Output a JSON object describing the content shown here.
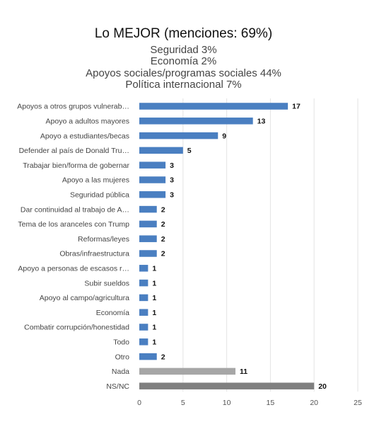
{
  "chart_data": {
    "type": "bar",
    "orientation": "horizontal",
    "title": "Lo MEJOR (menciones: 69%)",
    "subtitles": [
      "Seguridad 3%",
      "Economía 2%",
      "Apoyos sociales/programas sociales 44%",
      "Política internacional 7%"
    ],
    "categories": [
      "Apoyos a otros grupos vulnerab…",
      "Apoyo a adultos mayores",
      "Apoyo a estudiantes/becas",
      "Defender al país de Donald Tru…",
      "Trabajar bien/forma de gobernar",
      "Apoyo a las mujeres",
      "Seguridad pública",
      "Dar continuidad al trabajo de A…",
      "Tema de los aranceles con Trump",
      "Reformas/leyes",
      "Obras/infraestructura",
      "Apoyo a personas de escasos r…",
      "Subir sueldos",
      "Apoyo al campo/agricultura",
      "Economía",
      "Combatir corrupción/honestidad",
      "Todo",
      "Otro",
      "Nada",
      "NS/NC"
    ],
    "values": [
      17,
      13,
      9,
      5,
      3,
      3,
      3,
      2,
      2,
      2,
      2,
      1,
      1,
      1,
      1,
      1,
      1,
      2,
      11,
      20
    ],
    "bar_colors": [
      "#4a7fc1",
      "#4a7fc1",
      "#4a7fc1",
      "#4a7fc1",
      "#4a7fc1",
      "#4a7fc1",
      "#4a7fc1",
      "#4a7fc1",
      "#4a7fc1",
      "#4a7fc1",
      "#4a7fc1",
      "#4a7fc1",
      "#4a7fc1",
      "#4a7fc1",
      "#4a7fc1",
      "#4a7fc1",
      "#4a7fc1",
      "#4a7fc1",
      "#a6a6a6",
      "#7f7f7f"
    ],
    "xlim": [
      0,
      25
    ],
    "xticks": [
      0,
      5,
      10,
      15,
      20,
      25
    ],
    "grid": "vertical"
  }
}
